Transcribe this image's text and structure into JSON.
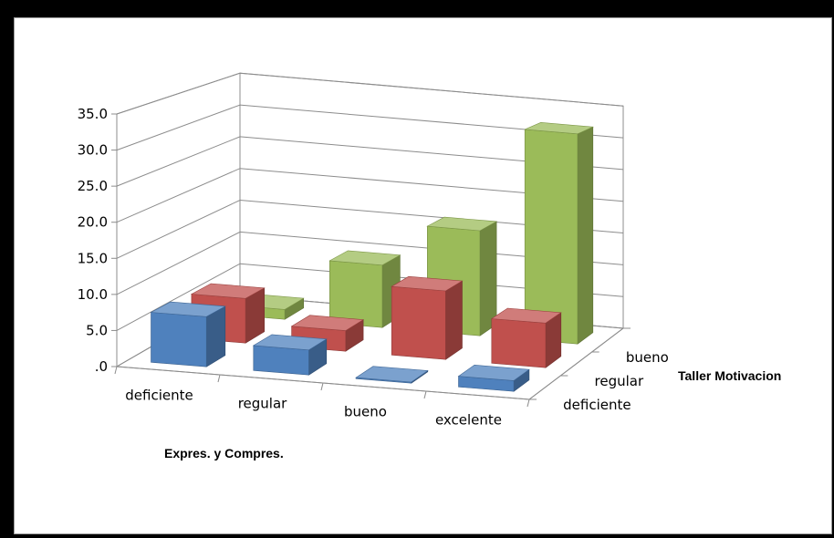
{
  "chart_data": {
    "type": "bar3d",
    "title": "",
    "xlabel": "Expres. y Compres.",
    "zlabel": "Taller Motivacion",
    "categories": [
      "deficiente",
      "regular",
      "bueno",
      "excelente"
    ],
    "series_labels": [
      "deficiente",
      "regular",
      "bueno"
    ],
    "series": [
      {
        "name": "deficiente",
        "color": "#4f81bd",
        "values": [
          7.0,
          3.5,
          0.0,
          1.5
        ]
      },
      {
        "name": "regular",
        "color": "#c0504d",
        "values": [
          6.5,
          3.0,
          10.0,
          6.5
        ]
      },
      {
        "name": "bueno",
        "color": "#9bbb59",
        "values": [
          1.5,
          9.5,
          16.0,
          32.0
        ]
      }
    ],
    "y_ticks": [
      ".0",
      "5.0",
      "10.0",
      "15.0",
      "20.0",
      "25.0",
      "30.0",
      "35.0"
    ],
    "ylim": [
      0,
      35
    ],
    "grid": true
  }
}
